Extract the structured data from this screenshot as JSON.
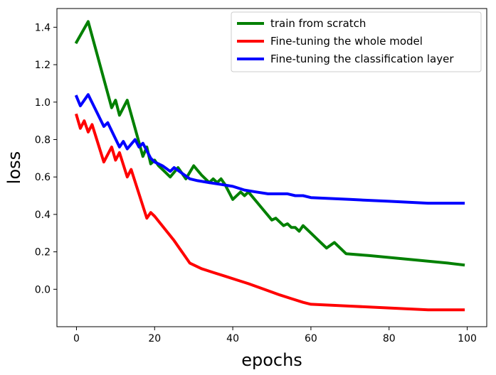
{
  "chart_data": {
    "type": "line",
    "title": "",
    "xlabel": "epochs",
    "ylabel": "loss",
    "xlim": [
      -5,
      105
    ],
    "ylim": [
      -0.2,
      1.5
    ],
    "xticks": [
      0,
      20,
      40,
      60,
      80,
      100
    ],
    "yticks": [
      0.0,
      0.2,
      0.4,
      0.6,
      0.8,
      1.0,
      1.2,
      1.4
    ],
    "grid": false,
    "legend_position": "top-right",
    "series": [
      {
        "name": "train from scratch",
        "color": "#008000",
        "x": [
          0,
          3,
          9,
          10,
          11,
          13,
          17,
          18,
          19,
          20,
          21,
          22,
          24,
          26,
          28,
          30,
          32,
          34,
          35,
          36,
          37,
          38,
          40,
          42,
          43,
          44,
          46,
          48,
          50,
          51,
          52,
          53,
          54,
          55,
          56,
          57,
          58,
          60,
          62,
          64,
          66,
          69,
          75,
          80,
          85,
          90,
          95,
          99
        ],
        "y": [
          1.32,
          1.43,
          0.97,
          1.01,
          0.93,
          1.01,
          0.71,
          0.76,
          0.67,
          0.69,
          0.66,
          0.64,
          0.6,
          0.65,
          0.59,
          0.66,
          0.61,
          0.57,
          0.59,
          0.57,
          0.59,
          0.56,
          0.48,
          0.52,
          0.5,
          0.52,
          0.47,
          0.42,
          0.37,
          0.38,
          0.36,
          0.34,
          0.35,
          0.33,
          0.33,
          0.31,
          0.34,
          0.3,
          0.26,
          0.22,
          0.25,
          0.19,
          0.18,
          0.17,
          0.16,
          0.15,
          0.14,
          0.13
        ]
      },
      {
        "name": "Fine-tuning the whole model",
        "color": "#ff0000",
        "x": [
          0,
          1,
          2,
          3,
          4,
          7,
          9,
          10,
          11,
          13,
          14,
          18,
          19,
          20,
          25,
          29,
          32,
          35,
          38,
          41,
          44,
          48,
          52,
          55,
          58,
          60,
          70,
          80,
          90,
          99
        ],
        "y": [
          0.93,
          0.86,
          0.9,
          0.84,
          0.88,
          0.68,
          0.76,
          0.69,
          0.73,
          0.6,
          0.64,
          0.38,
          0.41,
          0.39,
          0.26,
          0.14,
          0.11,
          0.09,
          0.07,
          0.05,
          0.03,
          0.0,
          -0.03,
          -0.05,
          -0.07,
          -0.08,
          -0.09,
          -0.1,
          -0.11,
          -0.11
        ]
      },
      {
        "name": "Fine-tuning the classification layer",
        "color": "#0000ff",
        "x": [
          0,
          1,
          3,
          7,
          8,
          11,
          12,
          13,
          15,
          16,
          17,
          19,
          20,
          22,
          24,
          25,
          27,
          29,
          31,
          34,
          37,
          40,
          43,
          46,
          49,
          52,
          54,
          56,
          58,
          60,
          70,
          80,
          90,
          99
        ],
        "y": [
          1.03,
          0.98,
          1.04,
          0.87,
          0.89,
          0.76,
          0.79,
          0.75,
          0.8,
          0.76,
          0.78,
          0.7,
          0.68,
          0.66,
          0.63,
          0.65,
          0.62,
          0.59,
          0.58,
          0.57,
          0.56,
          0.55,
          0.53,
          0.52,
          0.51,
          0.51,
          0.51,
          0.5,
          0.5,
          0.49,
          0.48,
          0.47,
          0.46,
          0.46
        ]
      }
    ]
  }
}
